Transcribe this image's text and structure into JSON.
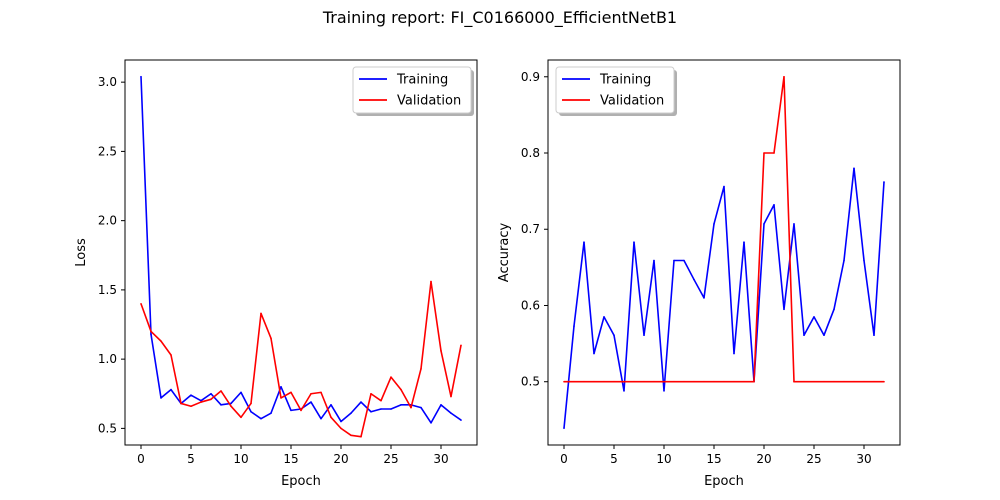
{
  "figure": {
    "suptitle": "Training report: FI_C0166000_EfficientNetB1"
  },
  "chart_data": [
    {
      "type": "line",
      "xlabel": "Epoch",
      "ylabel": "Loss",
      "xlim": [
        -1.6,
        33.6
      ],
      "ylim": [
        0.38,
        3.16
      ],
      "xticks": [
        0,
        5,
        10,
        15,
        20,
        25,
        30
      ],
      "xtick_labels": [
        "0",
        "5",
        "10",
        "15",
        "20",
        "25",
        "30"
      ],
      "yticks": [
        0.5,
        1.0,
        1.5,
        2.0,
        2.5,
        3.0
      ],
      "ytick_labels": [
        "0.5",
        "1.0",
        "1.5",
        "2.0",
        "2.5",
        "3.0"
      ],
      "grid": false,
      "legend_position": "upper right",
      "x": [
        0,
        1,
        2,
        3,
        4,
        5,
        6,
        7,
        8,
        9,
        10,
        11,
        12,
        13,
        14,
        15,
        16,
        17,
        18,
        19,
        20,
        21,
        22,
        23,
        24,
        25,
        26,
        27,
        28,
        29,
        30,
        31,
        32
      ],
      "series": [
        {
          "name": "Training",
          "color": "#0000ff",
          "values": [
            3.04,
            1.18,
            0.72,
            0.78,
            0.68,
            0.74,
            0.7,
            0.75,
            0.67,
            0.68,
            0.76,
            0.62,
            0.57,
            0.61,
            0.8,
            0.63,
            0.64,
            0.69,
            0.57,
            0.67,
            0.55,
            0.61,
            0.69,
            0.62,
            0.64,
            0.64,
            0.67,
            0.67,
            0.65,
            0.54,
            0.67,
            0.61,
            0.56
          ]
        },
        {
          "name": "Validation",
          "color": "#ff0000",
          "values": [
            1.4,
            1.2,
            1.13,
            1.03,
            0.68,
            0.66,
            0.69,
            0.71,
            0.77,
            0.66,
            0.58,
            0.68,
            1.33,
            1.15,
            0.72,
            0.76,
            0.63,
            0.75,
            0.76,
            0.58,
            0.5,
            0.45,
            0.44,
            0.75,
            0.7,
            0.87,
            0.78,
            0.65,
            0.93,
            1.56,
            1.06,
            0.73,
            1.1
          ]
        }
      ]
    },
    {
      "type": "line",
      "xlabel": "Epoch",
      "ylabel": "Accuracy",
      "xlim": [
        -1.6,
        33.6
      ],
      "ylim": [
        0.417,
        0.922
      ],
      "xticks": [
        0,
        5,
        10,
        15,
        20,
        25,
        30
      ],
      "xtick_labels": [
        "0",
        "5",
        "10",
        "15",
        "20",
        "25",
        "30"
      ],
      "yticks": [
        0.5,
        0.6,
        0.7,
        0.8,
        0.9
      ],
      "ytick_labels": [
        "0.5",
        "0.6",
        "0.7",
        "0.8",
        "0.9"
      ],
      "grid": false,
      "legend_position": "upper left",
      "x": [
        0,
        1,
        2,
        3,
        4,
        5,
        6,
        7,
        8,
        9,
        10,
        11,
        12,
        13,
        14,
        15,
        16,
        17,
        18,
        19,
        20,
        21,
        22,
        23,
        24,
        25,
        26,
        27,
        28,
        29,
        30,
        31,
        32
      ],
      "series": [
        {
          "name": "Training",
          "color": "#0000ff",
          "values": [
            0.439,
            0.573,
            0.683,
            0.537,
            0.585,
            0.561,
            0.488,
            0.683,
            0.561,
            0.659,
            0.488,
            0.659,
            0.659,
            0.634,
            0.61,
            0.707,
            0.756,
            0.537,
            0.683,
            0.5,
            0.707,
            0.732,
            0.595,
            0.707,
            0.561,
            0.585,
            0.561,
            0.595,
            0.659,
            0.78,
            0.659,
            0.561,
            0.762
          ]
        },
        {
          "name": "Validation",
          "color": "#ff0000",
          "values": [
            0.5,
            0.5,
            0.5,
            0.5,
            0.5,
            0.5,
            0.5,
            0.5,
            0.5,
            0.5,
            0.5,
            0.5,
            0.5,
            0.5,
            0.5,
            0.5,
            0.5,
            0.5,
            0.5,
            0.5,
            0.8,
            0.8,
            0.9,
            0.5,
            0.5,
            0.5,
            0.5,
            0.5,
            0.5,
            0.5,
            0.5,
            0.5,
            0.5
          ]
        }
      ]
    }
  ]
}
